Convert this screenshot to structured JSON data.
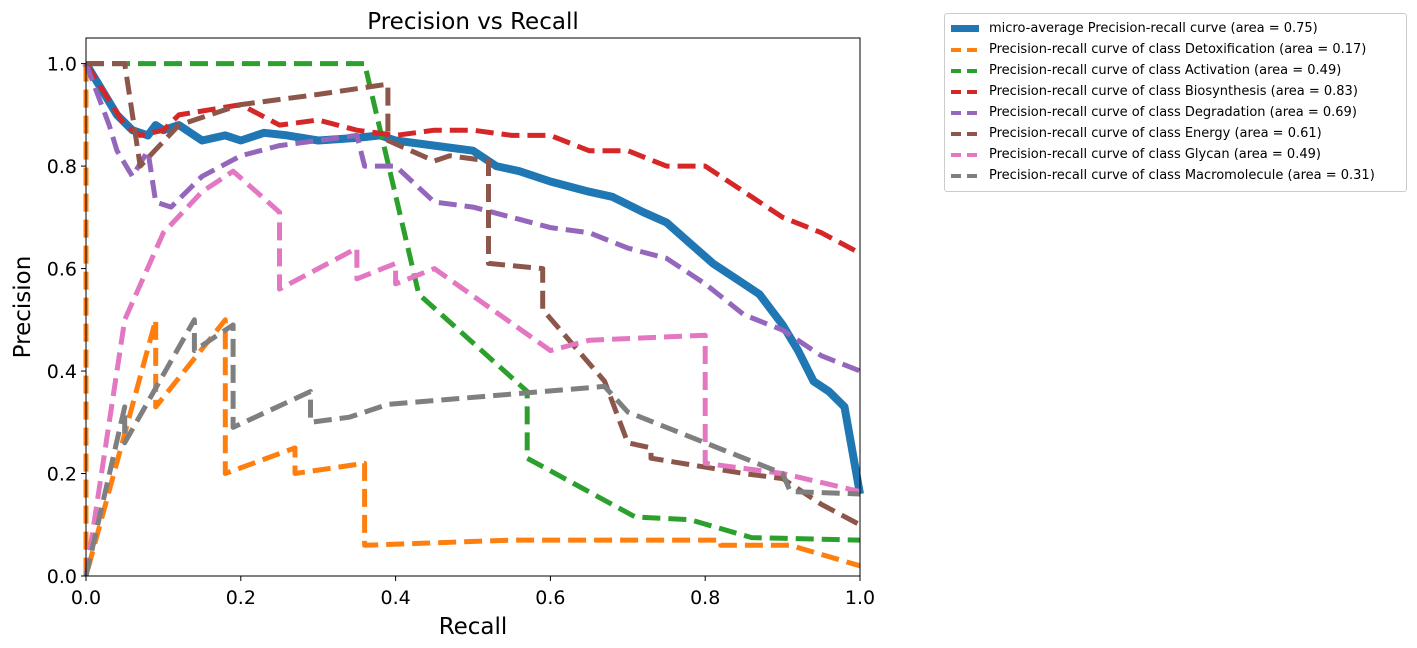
{
  "chart_data": {
    "type": "line",
    "title": "Precision vs Recall",
    "xlabel": "Recall",
    "ylabel": "Precision",
    "xlim": [
      0.0,
      1.0
    ],
    "ylim": [
      0.0,
      1.05
    ],
    "xticks": [
      "0.0",
      "0.2",
      "0.4",
      "0.6",
      "0.8",
      "1.0"
    ],
    "yticks": [
      "0.0",
      "0.2",
      "0.4",
      "0.6",
      "0.8",
      "1.0"
    ],
    "grid": false,
    "legend_position": "outside-top-right",
    "series": [
      {
        "name": "micro-average Precision-recall curve (area = 0.75)",
        "color": "#1f77b4",
        "style": "solid",
        "points": [
          [
            0.0,
            1.0
          ],
          [
            0.02,
            0.95
          ],
          [
            0.04,
            0.9
          ],
          [
            0.06,
            0.87
          ],
          [
            0.08,
            0.86
          ],
          [
            0.09,
            0.88
          ],
          [
            0.1,
            0.87
          ],
          [
            0.12,
            0.88
          ],
          [
            0.14,
            0.86
          ],
          [
            0.15,
            0.85
          ],
          [
            0.18,
            0.86
          ],
          [
            0.2,
            0.85
          ],
          [
            0.23,
            0.865
          ],
          [
            0.26,
            0.86
          ],
          [
            0.3,
            0.85
          ],
          [
            0.35,
            0.855
          ],
          [
            0.38,
            0.86
          ],
          [
            0.4,
            0.85
          ],
          [
            0.45,
            0.84
          ],
          [
            0.5,
            0.83
          ],
          [
            0.53,
            0.8
          ],
          [
            0.56,
            0.79
          ],
          [
            0.6,
            0.77
          ],
          [
            0.65,
            0.75
          ],
          [
            0.68,
            0.74
          ],
          [
            0.72,
            0.71
          ],
          [
            0.75,
            0.69
          ],
          [
            0.78,
            0.65
          ],
          [
            0.81,
            0.61
          ],
          [
            0.84,
            0.58
          ],
          [
            0.87,
            0.55
          ],
          [
            0.9,
            0.49
          ],
          [
            0.92,
            0.44
          ],
          [
            0.94,
            0.38
          ],
          [
            0.96,
            0.36
          ],
          [
            0.98,
            0.33
          ],
          [
            1.0,
            0.16
          ]
        ]
      },
      {
        "name": "Precision-recall curve of class Detoxification (area = 0.17)",
        "color": "#ff7f0e",
        "style": "dashed",
        "points": [
          [
            0.0,
            1.0
          ],
          [
            0.0,
            0.0
          ],
          [
            0.09,
            0.5
          ],
          [
            0.09,
            0.33
          ],
          [
            0.18,
            0.5
          ],
          [
            0.18,
            0.2
          ],
          [
            0.27,
            0.25
          ],
          [
            0.27,
            0.2
          ],
          [
            0.36,
            0.22
          ],
          [
            0.36,
            0.06
          ],
          [
            0.55,
            0.07
          ],
          [
            0.82,
            0.07
          ],
          [
            0.82,
            0.06
          ],
          [
            0.91,
            0.06
          ],
          [
            1.0,
            0.02
          ]
        ]
      },
      {
        "name": "Precision-recall curve of class Activation (area = 0.49)",
        "color": "#2ca02c",
        "style": "dashed",
        "points": [
          [
            0.0,
            1.0
          ],
          [
            0.36,
            1.0
          ],
          [
            0.43,
            0.55
          ],
          [
            0.57,
            0.36
          ],
          [
            0.57,
            0.23
          ],
          [
            0.71,
            0.115
          ],
          [
            0.78,
            0.11
          ],
          [
            0.86,
            0.075
          ],
          [
            1.0,
            0.07
          ]
        ]
      },
      {
        "name": "Precision-recall curve of class Biosynthesis (area = 0.83)",
        "color": "#d62728",
        "style": "dashed",
        "points": [
          [
            0.0,
            1.0
          ],
          [
            0.05,
            0.88
          ],
          [
            0.07,
            0.86
          ],
          [
            0.1,
            0.87
          ],
          [
            0.12,
            0.9
          ],
          [
            0.2,
            0.92
          ],
          [
            0.25,
            0.88
          ],
          [
            0.3,
            0.89
          ],
          [
            0.35,
            0.87
          ],
          [
            0.4,
            0.86
          ],
          [
            0.45,
            0.87
          ],
          [
            0.5,
            0.87
          ],
          [
            0.55,
            0.86
          ],
          [
            0.6,
            0.86
          ],
          [
            0.65,
            0.83
          ],
          [
            0.7,
            0.83
          ],
          [
            0.75,
            0.8
          ],
          [
            0.8,
            0.8
          ],
          [
            0.85,
            0.75
          ],
          [
            0.9,
            0.7
          ],
          [
            0.95,
            0.67
          ],
          [
            1.0,
            0.63
          ]
        ]
      },
      {
        "name": "Precision-recall curve of class Degradation (area = 0.69)",
        "color": "#9467bd",
        "style": "dashed",
        "points": [
          [
            0.0,
            1.0
          ],
          [
            0.03,
            0.88
          ],
          [
            0.04,
            0.83
          ],
          [
            0.06,
            0.78
          ],
          [
            0.08,
            0.83
          ],
          [
            0.09,
            0.73
          ],
          [
            0.11,
            0.72
          ],
          [
            0.15,
            0.78
          ],
          [
            0.2,
            0.82
          ],
          [
            0.25,
            0.84
          ],
          [
            0.3,
            0.85
          ],
          [
            0.35,
            0.86
          ],
          [
            0.36,
            0.8
          ],
          [
            0.4,
            0.8
          ],
          [
            0.45,
            0.73
          ],
          [
            0.5,
            0.72
          ],
          [
            0.55,
            0.7
          ],
          [
            0.6,
            0.68
          ],
          [
            0.65,
            0.67
          ],
          [
            0.7,
            0.64
          ],
          [
            0.75,
            0.62
          ],
          [
            0.8,
            0.57
          ],
          [
            0.85,
            0.51
          ],
          [
            0.9,
            0.48
          ],
          [
            0.95,
            0.43
          ],
          [
            1.0,
            0.4
          ]
        ]
      },
      {
        "name": "Precision-recall curve of class Energy (area = 0.61)",
        "color": "#8c564b",
        "style": "dashed",
        "points": [
          [
            0.0,
            1.0
          ],
          [
            0.05,
            1.0
          ],
          [
            0.07,
            0.8
          ],
          [
            0.12,
            0.88
          ],
          [
            0.2,
            0.92
          ],
          [
            0.3,
            0.94
          ],
          [
            0.39,
            0.96
          ],
          [
            0.39,
            0.85
          ],
          [
            0.45,
            0.81
          ],
          [
            0.47,
            0.82
          ],
          [
            0.52,
            0.81
          ],
          [
            0.52,
            0.61
          ],
          [
            0.59,
            0.6
          ],
          [
            0.59,
            0.52
          ],
          [
            0.67,
            0.38
          ],
          [
            0.7,
            0.26
          ],
          [
            0.73,
            0.25
          ],
          [
            0.73,
            0.23
          ],
          [
            0.85,
            0.2
          ],
          [
            0.9,
            0.19
          ],
          [
            0.95,
            0.14
          ],
          [
            1.0,
            0.1
          ]
        ]
      },
      {
        "name": "Precision-recall curve of class Glycan (area = 0.49)",
        "color": "#e377c2",
        "style": "dashed",
        "points": [
          [
            0.0,
            0.0
          ],
          [
            0.02,
            0.2
          ],
          [
            0.05,
            0.5
          ],
          [
            0.1,
            0.67
          ],
          [
            0.15,
            0.75
          ],
          [
            0.19,
            0.79
          ],
          [
            0.25,
            0.71
          ],
          [
            0.25,
            0.56
          ],
          [
            0.35,
            0.64
          ],
          [
            0.35,
            0.58
          ],
          [
            0.4,
            0.61
          ],
          [
            0.4,
            0.57
          ],
          [
            0.45,
            0.6
          ],
          [
            0.6,
            0.44
          ],
          [
            0.65,
            0.46
          ],
          [
            0.8,
            0.47
          ],
          [
            0.8,
            0.22
          ],
          [
            0.9,
            0.2
          ],
          [
            1.0,
            0.165
          ]
        ]
      },
      {
        "name": "Precision-recall curve of class Macromolecule (area = 0.31)",
        "color": "#7f7f7f",
        "style": "dashed",
        "points": [
          [
            0.0,
            0.0
          ],
          [
            0.05,
            0.33
          ],
          [
            0.05,
            0.26
          ],
          [
            0.14,
            0.5
          ],
          [
            0.14,
            0.44
          ],
          [
            0.19,
            0.49
          ],
          [
            0.19,
            0.29
          ],
          [
            0.29,
            0.36
          ],
          [
            0.29,
            0.3
          ],
          [
            0.34,
            0.31
          ],
          [
            0.39,
            0.335
          ],
          [
            0.67,
            0.37
          ],
          [
            0.7,
            0.32
          ],
          [
            0.8,
            0.26
          ],
          [
            0.9,
            0.2
          ],
          [
            0.91,
            0.165
          ],
          [
            1.0,
            0.16
          ]
        ]
      }
    ]
  }
}
